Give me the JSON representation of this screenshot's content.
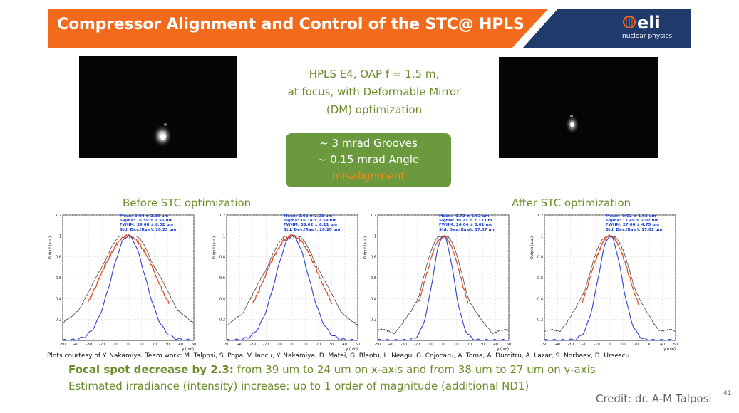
{
  "header": {
    "title": "Compressor Alignment and Control of  the STC@ HPLS",
    "logo_text": "nuclear physics",
    "logo_mark": "eli",
    "colors": {
      "orange": "#f26a1b",
      "navy": "#1f3a6b"
    }
  },
  "config": {
    "line1": "HPLS E4, OAP f = 1.5 m,",
    "line2": "at focus, with Deformable Mirror",
    "line3": "(DM) optimization"
  },
  "green_box": {
    "line1": "~ 3 mrad Grooves",
    "line2": "~ 0.15 mrad Angle",
    "line3": "misalignment",
    "color": "#6b9a3e"
  },
  "captions": {
    "before": "Before STC optimization",
    "after": "After STC optimization"
  },
  "plots": [
    {
      "stats": [
        "Mean: 0.04 ± 2.00 um",
        "Sigma: 16.59 ± 2.55 um",
        "FWHM: 39.08 ± 6.02 um",
        "Std. Dev.(Raw): 20.23 um"
      ]
    },
    {
      "stats": [
        "Mean: 0.02 ± 2.01 um",
        "Sigma: 16.14 ± 2.59 um",
        "FWHM: 38.02 ± 6.11 um",
        "Std. Dev.(Raw): 26.20 um"
      ]
    },
    {
      "stats": [
        "Mean: -0.72 ± 1.62 um",
        "Sigma: 10.21 ± 2.13 um",
        "FWHM: 24.04 ± 5.01 um",
        "Std. Dev.(Raw): 17.37 um"
      ]
    },
    {
      "stats": [
        "Mean: -0.02 ± 1.62 um",
        "Sigma: 11.49 ± 2.02 um",
        "FWHM: 27.06 ± 4.75 um",
        "Std. Dev.(Raw): 17.01 um"
      ]
    }
  ],
  "axes": {
    "ylabel": "Output (a.u.)",
    "xlabel": "y (um)",
    "xticks": [
      "-50",
      "-40",
      "-30",
      "-20",
      "-10",
      "0",
      "10",
      "20",
      "30",
      "40",
      "50"
    ],
    "yticks": [
      "0.2",
      "0.4",
      "0.6",
      "0.8",
      "1",
      "1.2"
    ]
  },
  "footer": {
    "courtesy": "Plots courtesy of Y. Nakamiya. Team work: M. Talposi, S. Popa, V. Iancu, Y. Nakamiya, D. Matei, G. Bleotu, L. Neagu, G. Cojocaru, A. Toma, A. Dumitru, A. Lazar, S. Norbaev, D. Ursescu",
    "focal_bold": "Focal spot decrease by 2.3:",
    "focal_rest": " from 39 um to 24 um on x-axis and from 38 um to 27 um on y-axis",
    "irradiance": "Estimated irradiance (intensity) increase: up to 1 order of magnitude (additional ND1)",
    "credit": "Credit: dr. A-M Talposi",
    "page": "41"
  }
}
